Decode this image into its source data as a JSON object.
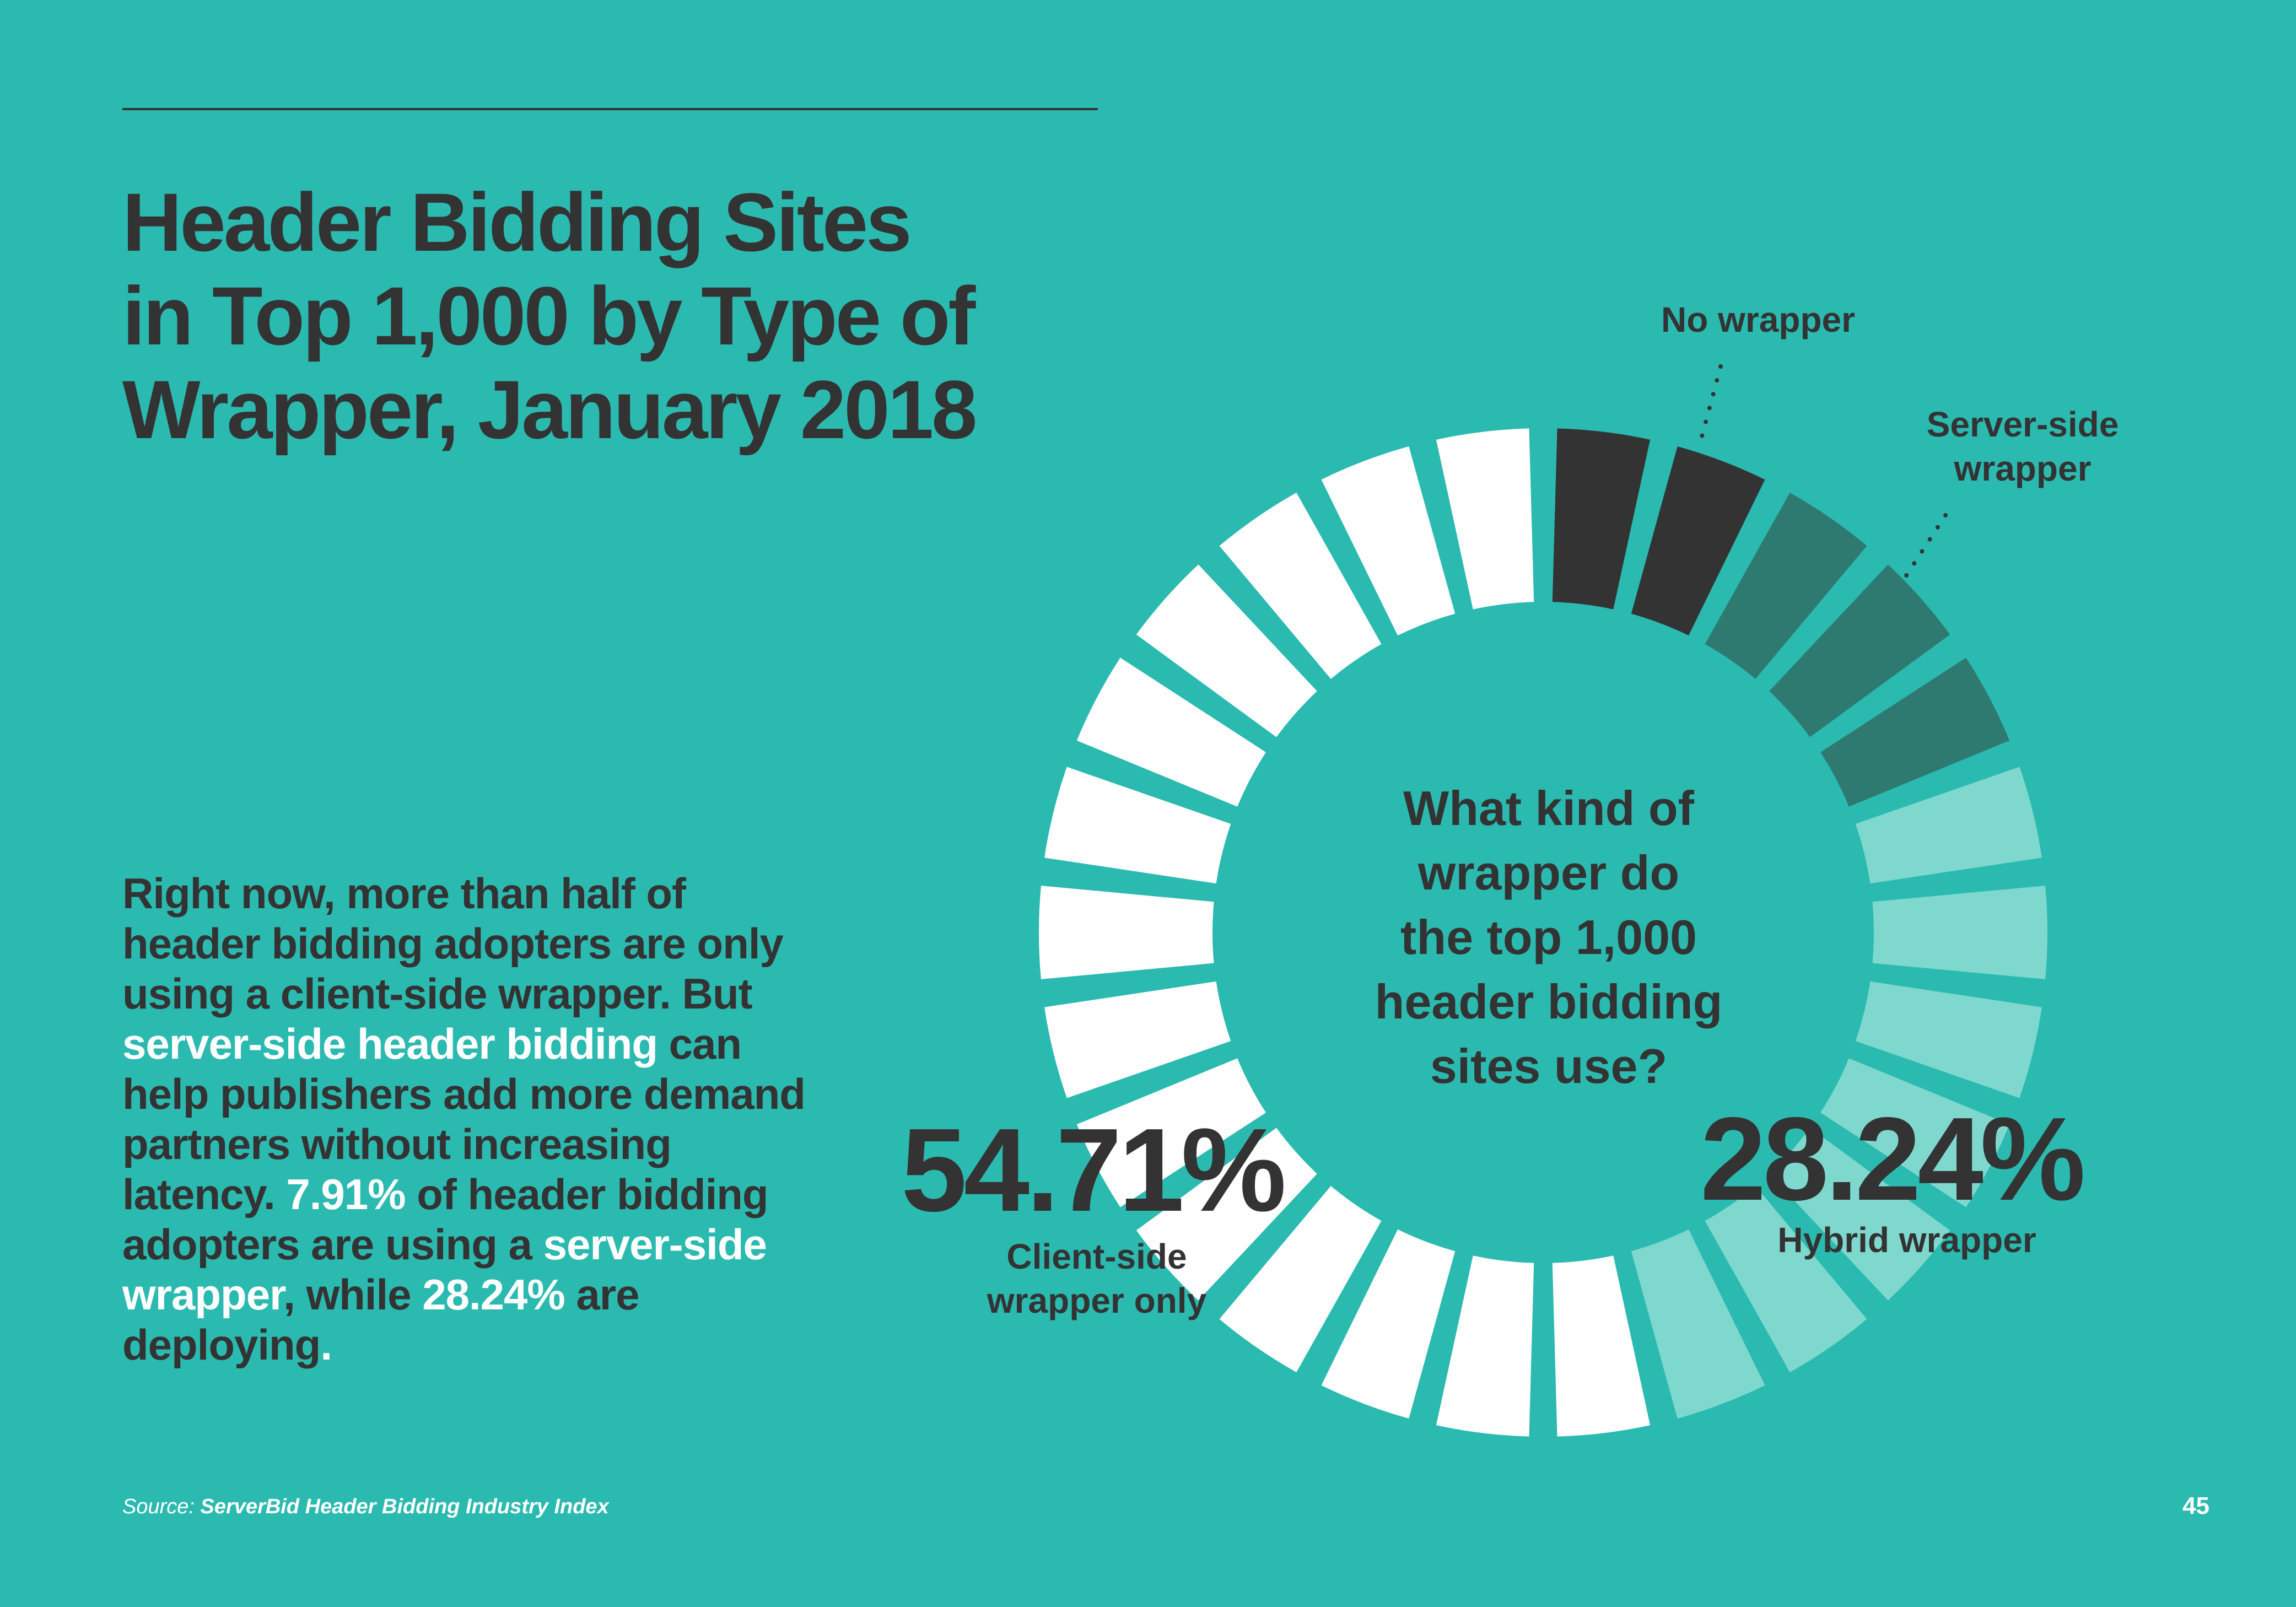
{
  "title_lines": [
    "Header Bidding Sites",
    "in Top 1,000 by Type of",
    "Wrapper, January 2018"
  ],
  "body": {
    "p1": "Right now, more than half of header bidding adopters are only using a client-side wrapper. But ",
    "hl1": "server-side header bidding",
    "p2": " can help publishers add more demand partners without increasing latency. ",
    "hl2": "7.91%",
    "p3": " of header bidding adopters are using a ",
    "hl3": "server-side wrapper",
    "p4": ", while ",
    "hl4": "28.24%",
    "p5": " are deploying",
    "hl5": "."
  },
  "source": {
    "label": "Source:",
    "text": "ServerBid Header Bidding Industry Index"
  },
  "page_number": "45",
  "colors": {
    "background": "#2bbab0",
    "text_dark": "#333333",
    "highlight": "#ffffff",
    "no_wrapper": "#333333",
    "server_side": "#2e7a70",
    "hybrid": "#7fd8ce",
    "client_side": "#ffffff"
  },
  "chart_data": {
    "type": "pie",
    "style": "segmented-donut",
    "center_text_lines": [
      "What kind of",
      "wrapper do",
      "the top 1,000",
      "header bidding",
      "sites use?"
    ],
    "total_segments": 26,
    "categories": [
      "No wrapper",
      "Server-side wrapper",
      "Hybrid wrapper",
      "Client-side wrapper only"
    ],
    "label_lines": {
      "no_wrapper": [
        "No wrapper"
      ],
      "server_side": [
        "Server-side",
        "wrapper"
      ],
      "hybrid": [
        "Hybrid wrapper"
      ],
      "client_side": [
        "Client-side",
        "wrapper only"
      ]
    },
    "values": [
      9.14,
      7.91,
      28.24,
      54.71
    ],
    "value_labels": {
      "client_side": "54.71%",
      "hybrid": "28.24%"
    },
    "segment_counts": [
      2,
      3,
      7,
      14
    ],
    "colors": [
      "#333333",
      "#2e7a70",
      "#7fd8ce",
      "#ffffff"
    ]
  }
}
